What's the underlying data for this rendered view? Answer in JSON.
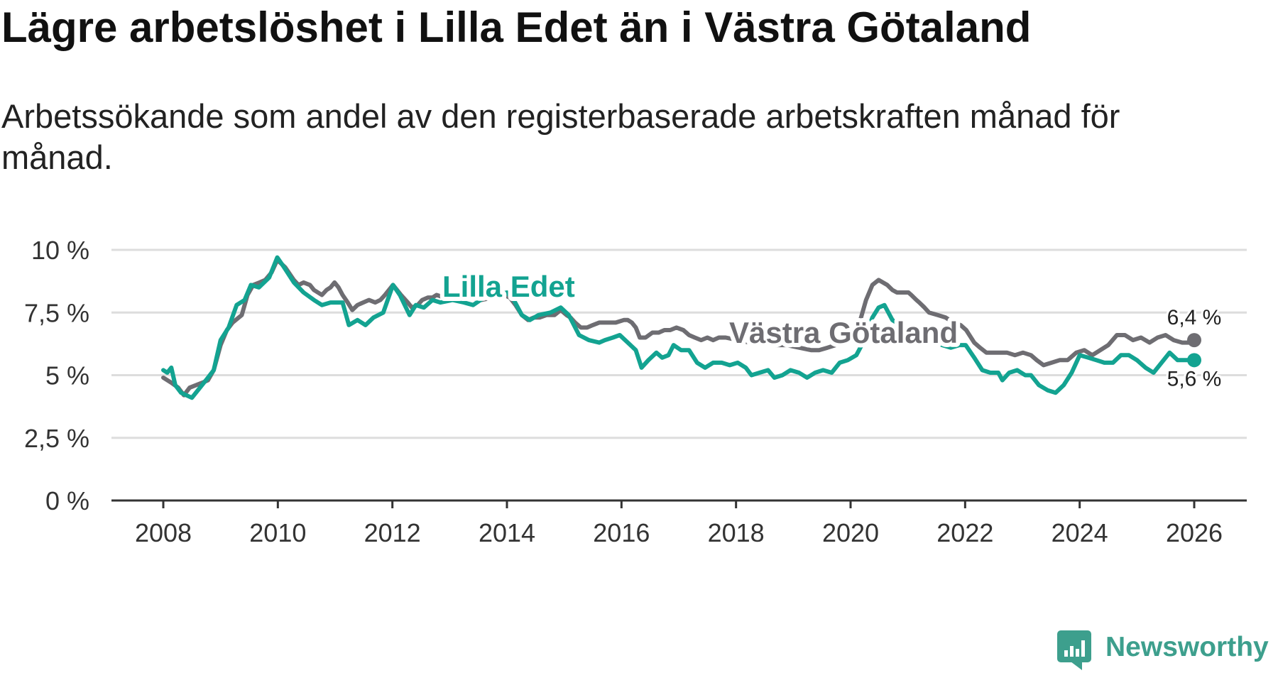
{
  "chart_data": {
    "type": "line",
    "title": "Lägre arbetslöshet i Lilla Edet än i Västra Götaland",
    "subtitle": "Arbetssökande som andel av den registerbaserade arbetskraften månad för månad.",
    "xlabel": "",
    "ylabel": "",
    "xlim": [
      2008,
      2026
    ],
    "ylim": [
      0,
      10
    ],
    "grid": true,
    "xticks": [
      {
        "value": 2008,
        "label": "2008"
      },
      {
        "value": 2010,
        "label": "2010"
      },
      {
        "value": 2012,
        "label": "2012"
      },
      {
        "value": 2014,
        "label": "2014"
      },
      {
        "value": 2016,
        "label": "2016"
      },
      {
        "value": 2018,
        "label": "2018"
      },
      {
        "value": 2020,
        "label": "2020"
      },
      {
        "value": 2022,
        "label": "2022"
      },
      {
        "value": 2024,
        "label": "2024"
      },
      {
        "value": 2026,
        "label": "2026"
      }
    ],
    "yticks": [
      {
        "value": 0,
        "label": "0 %"
      },
      {
        "value": 2.5,
        "label": "2,5 %"
      },
      {
        "value": 5,
        "label": "5 %"
      },
      {
        "value": 7.5,
        "label": "7,5 %"
      },
      {
        "value": 10,
        "label": "10 %"
      }
    ],
    "series": [
      {
        "name": "Lilla Edet",
        "color": "#13a391",
        "end_label": "5,6 %",
        "points": [
          [
            2008.0,
            5.2
          ],
          [
            2008.07,
            5.1
          ],
          [
            2008.14,
            5.3
          ],
          [
            2008.21,
            4.6
          ],
          [
            2008.31,
            4.3
          ],
          [
            2008.4,
            4.2
          ],
          [
            2008.5,
            4.1
          ],
          [
            2008.64,
            4.5
          ],
          [
            2008.78,
            4.9
          ],
          [
            2008.88,
            5.2
          ],
          [
            2009.0,
            6.4
          ],
          [
            2009.14,
            6.9
          ],
          [
            2009.28,
            7.8
          ],
          [
            2009.42,
            8.0
          ],
          [
            2009.53,
            8.6
          ],
          [
            2009.67,
            8.5
          ],
          [
            2009.85,
            8.9
          ],
          [
            2009.99,
            9.7
          ],
          [
            2010.11,
            9.3
          ],
          [
            2010.28,
            8.7
          ],
          [
            2010.45,
            8.3
          ],
          [
            2010.63,
            8.0
          ],
          [
            2010.77,
            7.8
          ],
          [
            2010.92,
            7.9
          ],
          [
            2011.13,
            7.9
          ],
          [
            2011.24,
            7.0
          ],
          [
            2011.39,
            7.2
          ],
          [
            2011.53,
            7.0
          ],
          [
            2011.67,
            7.3
          ],
          [
            2011.84,
            7.5
          ],
          [
            2012.01,
            8.6
          ],
          [
            2012.13,
            8.2
          ],
          [
            2012.3,
            7.4
          ],
          [
            2012.41,
            7.8
          ],
          [
            2012.55,
            7.7
          ],
          [
            2012.7,
            8.0
          ],
          [
            2012.84,
            7.9
          ],
          [
            2013.05,
            8.0
          ],
          [
            2013.25,
            7.9
          ],
          [
            2013.41,
            7.8
          ],
          [
            2013.6,
            8.1
          ],
          [
            2013.8,
            8.2
          ],
          [
            2014.0,
            8.3
          ],
          [
            2014.12,
            8.0
          ],
          [
            2014.26,
            7.4
          ],
          [
            2014.4,
            7.2
          ],
          [
            2014.55,
            7.4
          ],
          [
            2014.76,
            7.5
          ],
          [
            2014.94,
            7.7
          ],
          [
            2015.08,
            7.4
          ],
          [
            2015.26,
            6.6
          ],
          [
            2015.43,
            6.4
          ],
          [
            2015.61,
            6.3
          ],
          [
            2015.71,
            6.4
          ],
          [
            2015.85,
            6.5
          ],
          [
            2015.97,
            6.6
          ],
          [
            2016.11,
            6.3
          ],
          [
            2016.25,
            6.0
          ],
          [
            2016.35,
            5.3
          ],
          [
            2016.47,
            5.6
          ],
          [
            2016.61,
            5.9
          ],
          [
            2016.71,
            5.7
          ],
          [
            2016.82,
            5.8
          ],
          [
            2016.91,
            6.2
          ],
          [
            2017.04,
            6.0
          ],
          [
            2017.18,
            6.0
          ],
          [
            2017.32,
            5.5
          ],
          [
            2017.46,
            5.3
          ],
          [
            2017.6,
            5.5
          ],
          [
            2017.75,
            5.5
          ],
          [
            2017.89,
            5.4
          ],
          [
            2018.03,
            5.5
          ],
          [
            2018.17,
            5.3
          ],
          [
            2018.27,
            5.0
          ],
          [
            2018.41,
            5.1
          ],
          [
            2018.56,
            5.2
          ],
          [
            2018.67,
            4.9
          ],
          [
            2018.81,
            5.0
          ],
          [
            2018.95,
            5.2
          ],
          [
            2019.1,
            5.1
          ],
          [
            2019.24,
            4.9
          ],
          [
            2019.38,
            5.1
          ],
          [
            2019.52,
            5.2
          ],
          [
            2019.67,
            5.1
          ],
          [
            2019.81,
            5.5
          ],
          [
            2019.95,
            5.6
          ],
          [
            2020.1,
            5.8
          ],
          [
            2020.24,
            6.4
          ],
          [
            2020.38,
            7.3
          ],
          [
            2020.49,
            7.7
          ],
          [
            2020.59,
            7.8
          ],
          [
            2020.73,
            7.2
          ],
          [
            2020.87,
            7.0
          ],
          [
            2021.01,
            6.9
          ],
          [
            2021.2,
            6.7
          ],
          [
            2021.4,
            6.4
          ],
          [
            2021.6,
            6.2
          ],
          [
            2021.75,
            6.1
          ],
          [
            2021.9,
            6.2
          ],
          [
            2022.01,
            6.2
          ],
          [
            2022.16,
            5.7
          ],
          [
            2022.3,
            5.2
          ],
          [
            2022.44,
            5.1
          ],
          [
            2022.58,
            5.1
          ],
          [
            2022.65,
            4.8
          ],
          [
            2022.77,
            5.1
          ],
          [
            2022.91,
            5.2
          ],
          [
            2023.05,
            5.0
          ],
          [
            2023.15,
            5.0
          ],
          [
            2023.29,
            4.6
          ],
          [
            2023.44,
            4.4
          ],
          [
            2023.58,
            4.3
          ],
          [
            2023.72,
            4.6
          ],
          [
            2023.86,
            5.1
          ],
          [
            2024.0,
            5.8
          ],
          [
            2024.15,
            5.7
          ],
          [
            2024.29,
            5.6
          ],
          [
            2024.43,
            5.5
          ],
          [
            2024.58,
            5.5
          ],
          [
            2024.72,
            5.8
          ],
          [
            2024.86,
            5.8
          ],
          [
            2025.0,
            5.6
          ],
          [
            2025.15,
            5.3
          ],
          [
            2025.29,
            5.1
          ],
          [
            2025.43,
            5.5
          ],
          [
            2025.57,
            5.9
          ],
          [
            2025.71,
            5.6
          ],
          [
            2025.86,
            5.6
          ],
          [
            2026.0,
            5.6
          ]
        ]
      },
      {
        "name": "Västra Götaland",
        "color": "#6e6d72",
        "end_label": "6,4 %",
        "points": [
          [
            2008.0,
            4.9
          ],
          [
            2008.14,
            4.7
          ],
          [
            2008.26,
            4.5
          ],
          [
            2008.36,
            4.2
          ],
          [
            2008.46,
            4.5
          ],
          [
            2008.57,
            4.6
          ],
          [
            2008.68,
            4.7
          ],
          [
            2008.78,
            4.8
          ],
          [
            2008.88,
            5.2
          ],
          [
            2009.0,
            6.2
          ],
          [
            2009.11,
            6.8
          ],
          [
            2009.21,
            7.1
          ],
          [
            2009.37,
            7.4
          ],
          [
            2009.47,
            8.2
          ],
          [
            2009.57,
            8.6
          ],
          [
            2009.68,
            8.7
          ],
          [
            2009.78,
            8.8
          ],
          [
            2009.89,
            9.1
          ],
          [
            2009.99,
            9.6
          ],
          [
            2010.13,
            9.3
          ],
          [
            2010.28,
            8.8
          ],
          [
            2010.36,
            8.6
          ],
          [
            2010.45,
            8.7
          ],
          [
            2010.56,
            8.6
          ],
          [
            2010.63,
            8.4
          ],
          [
            2010.7,
            8.3
          ],
          [
            2010.77,
            8.2
          ],
          [
            2010.85,
            8.4
          ],
          [
            2010.92,
            8.5
          ],
          [
            2010.99,
            8.7
          ],
          [
            2011.06,
            8.5
          ],
          [
            2011.13,
            8.2
          ],
          [
            2011.22,
            7.9
          ],
          [
            2011.3,
            7.6
          ],
          [
            2011.39,
            7.8
          ],
          [
            2011.49,
            7.9
          ],
          [
            2011.59,
            8.0
          ],
          [
            2011.7,
            7.9
          ],
          [
            2011.79,
            8.0
          ],
          [
            2011.87,
            8.2
          ],
          [
            2012.01,
            8.6
          ],
          [
            2012.15,
            8.2
          ],
          [
            2012.27,
            7.9
          ],
          [
            2012.34,
            7.7
          ],
          [
            2012.44,
            7.8
          ],
          [
            2012.52,
            8.0
          ],
          [
            2012.62,
            8.1
          ],
          [
            2012.7,
            8.1
          ],
          [
            2012.77,
            8.2
          ],
          [
            2012.91,
            8.1
          ],
          [
            2013.12,
            8.0
          ],
          [
            2013.34,
            8.1
          ],
          [
            2013.55,
            8.0
          ],
          [
            2013.76,
            8.1
          ],
          [
            2013.95,
            8.2
          ],
          [
            2014.05,
            8.1
          ],
          [
            2014.15,
            7.8
          ],
          [
            2014.26,
            7.4
          ],
          [
            2014.37,
            7.2
          ],
          [
            2014.47,
            7.3
          ],
          [
            2014.57,
            7.3
          ],
          [
            2014.69,
            7.4
          ],
          [
            2014.83,
            7.4
          ],
          [
            2014.94,
            7.6
          ],
          [
            2015.04,
            7.4
          ],
          [
            2015.11,
            7.3
          ],
          [
            2015.19,
            7.1
          ],
          [
            2015.29,
            6.9
          ],
          [
            2015.4,
            6.9
          ],
          [
            2015.5,
            7.0
          ],
          [
            2015.61,
            7.1
          ],
          [
            2015.75,
            7.1
          ],
          [
            2015.9,
            7.1
          ],
          [
            2016.04,
            7.2
          ],
          [
            2016.11,
            7.2
          ],
          [
            2016.18,
            7.1
          ],
          [
            2016.25,
            6.9
          ],
          [
            2016.32,
            6.5
          ],
          [
            2016.42,
            6.5
          ],
          [
            2016.54,
            6.7
          ],
          [
            2016.65,
            6.7
          ],
          [
            2016.75,
            6.8
          ],
          [
            2016.85,
            6.8
          ],
          [
            2016.96,
            6.9
          ],
          [
            2017.08,
            6.8
          ],
          [
            2017.18,
            6.6
          ],
          [
            2017.28,
            6.5
          ],
          [
            2017.39,
            6.4
          ],
          [
            2017.5,
            6.5
          ],
          [
            2017.6,
            6.4
          ],
          [
            2017.7,
            6.5
          ],
          [
            2017.82,
            6.5
          ],
          [
            2018.03,
            6.4
          ],
          [
            2018.24,
            6.3
          ],
          [
            2018.46,
            6.3
          ],
          [
            2018.67,
            6.2
          ],
          [
            2018.88,
            6.2
          ],
          [
            2019.1,
            6.1
          ],
          [
            2019.31,
            6.0
          ],
          [
            2019.45,
            6.0
          ],
          [
            2019.6,
            6.1
          ],
          [
            2019.74,
            6.2
          ],
          [
            2019.88,
            6.3
          ],
          [
            2020.02,
            6.6
          ],
          [
            2020.17,
            7.2
          ],
          [
            2020.27,
            8.0
          ],
          [
            2020.38,
            8.6
          ],
          [
            2020.49,
            8.8
          ],
          [
            2020.64,
            8.6
          ],
          [
            2020.73,
            8.4
          ],
          [
            2020.81,
            8.3
          ],
          [
            2020.92,
            8.3
          ],
          [
            2021.01,
            8.3
          ],
          [
            2021.06,
            8.2
          ],
          [
            2021.15,
            8.0
          ],
          [
            2021.2,
            7.9
          ],
          [
            2021.29,
            7.7
          ],
          [
            2021.37,
            7.5
          ],
          [
            2021.52,
            7.4
          ],
          [
            2021.66,
            7.3
          ],
          [
            2021.8,
            7.1
          ],
          [
            2021.92,
            7.0
          ],
          [
            2022.02,
            6.8
          ],
          [
            2022.16,
            6.3
          ],
          [
            2022.26,
            6.1
          ],
          [
            2022.37,
            5.9
          ],
          [
            2022.51,
            5.9
          ],
          [
            2022.73,
            5.9
          ],
          [
            2022.87,
            5.8
          ],
          [
            2023.01,
            5.9
          ],
          [
            2023.15,
            5.8
          ],
          [
            2023.25,
            5.6
          ],
          [
            2023.37,
            5.4
          ],
          [
            2023.51,
            5.5
          ],
          [
            2023.65,
            5.6
          ],
          [
            2023.79,
            5.6
          ],
          [
            2023.94,
            5.9
          ],
          [
            2024.08,
            6.0
          ],
          [
            2024.22,
            5.8
          ],
          [
            2024.36,
            6.0
          ],
          [
            2024.5,
            6.2
          ],
          [
            2024.65,
            6.6
          ],
          [
            2024.79,
            6.6
          ],
          [
            2024.93,
            6.4
          ],
          [
            2025.07,
            6.5
          ],
          [
            2025.22,
            6.3
          ],
          [
            2025.36,
            6.5
          ],
          [
            2025.5,
            6.6
          ],
          [
            2025.64,
            6.4
          ],
          [
            2025.79,
            6.3
          ],
          [
            2025.9,
            6.3
          ],
          [
            2026.0,
            6.4
          ]
        ]
      }
    ]
  },
  "colors": {
    "title": "#111111",
    "text": "#222222",
    "grid": "#dddddd",
    "axis": "#333333",
    "brand": "#3d9f8d"
  },
  "brand": {
    "name": "Newsworthy",
    "icon": "newsworthy-logo-icon"
  }
}
